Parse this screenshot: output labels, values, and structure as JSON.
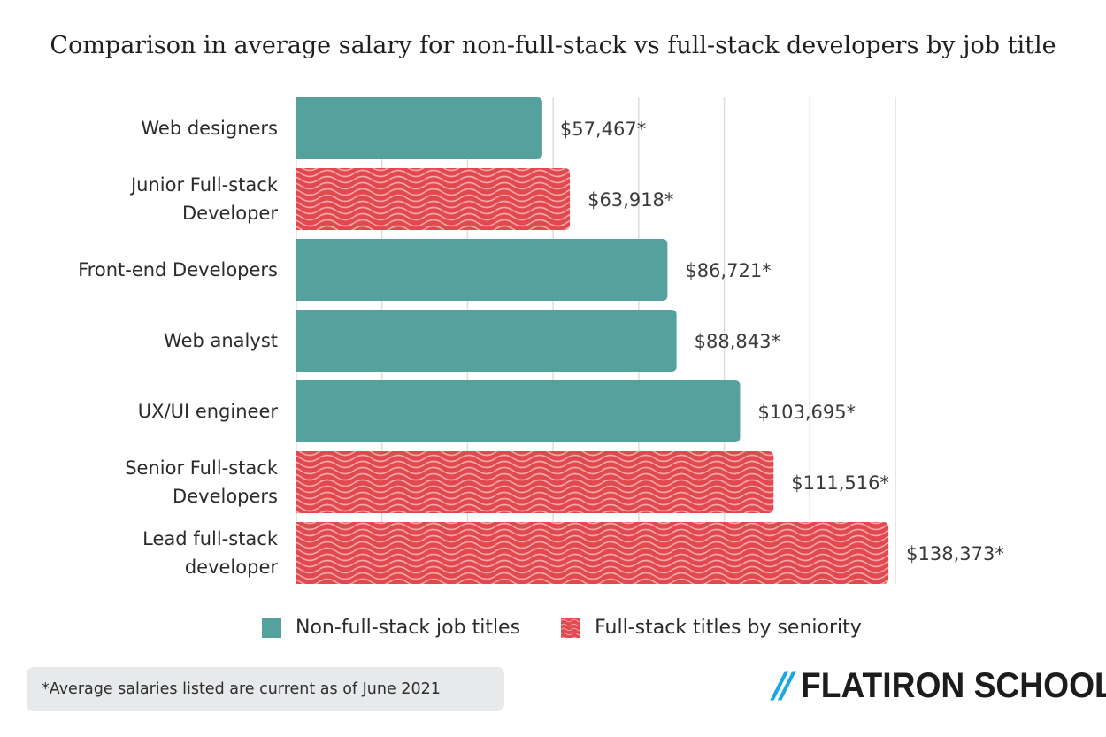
{
  "colors": {
    "teal": "#55a19e",
    "red": "#e2494f",
    "wave": "#f6a8aa",
    "grid": "#dddddd",
    "text": "#2b2b2b"
  },
  "chart_data": {
    "type": "bar",
    "orientation": "horizontal",
    "title": "Comparison in average salary for non-full-stack vs full-stack developers by job title",
    "xlim": [
      0,
      140000
    ],
    "grid": true,
    "legend_position": "bottom",
    "categories": [
      [
        "Web designers"
      ],
      [
        "Junior Full-stack",
        "Developer"
      ],
      [
        "Front-end Developers"
      ],
      [
        "Web analyst"
      ],
      [
        "UX/UI engineer"
      ],
      [
        "Senior Full-stack",
        "Developers"
      ],
      [
        "Lead full-stack",
        "developer"
      ]
    ],
    "values": [
      57467,
      63918,
      86721,
      88843,
      103695,
      111516,
      138373
    ],
    "value_labels": [
      "$57,467*",
      "$63,918*",
      "$86,721*",
      "$88,843*",
      "$103,695*",
      "$111,516*",
      "$138,373*"
    ],
    "groups": [
      "non-full-stack",
      "full-stack",
      "non-full-stack",
      "non-full-stack",
      "non-full-stack",
      "full-stack",
      "full-stack"
    ],
    "series": [
      {
        "name": "Non-full-stack job titles",
        "key": "non-full-stack",
        "style": "solid"
      },
      {
        "name": "Full-stack titles by seniority",
        "key": "full-stack",
        "style": "wave-pattern"
      }
    ]
  },
  "footnote": "*Average salaries listed are current as of June 2021",
  "brand": {
    "slashes": "//",
    "name": "FLATIRON SCHOOL"
  }
}
